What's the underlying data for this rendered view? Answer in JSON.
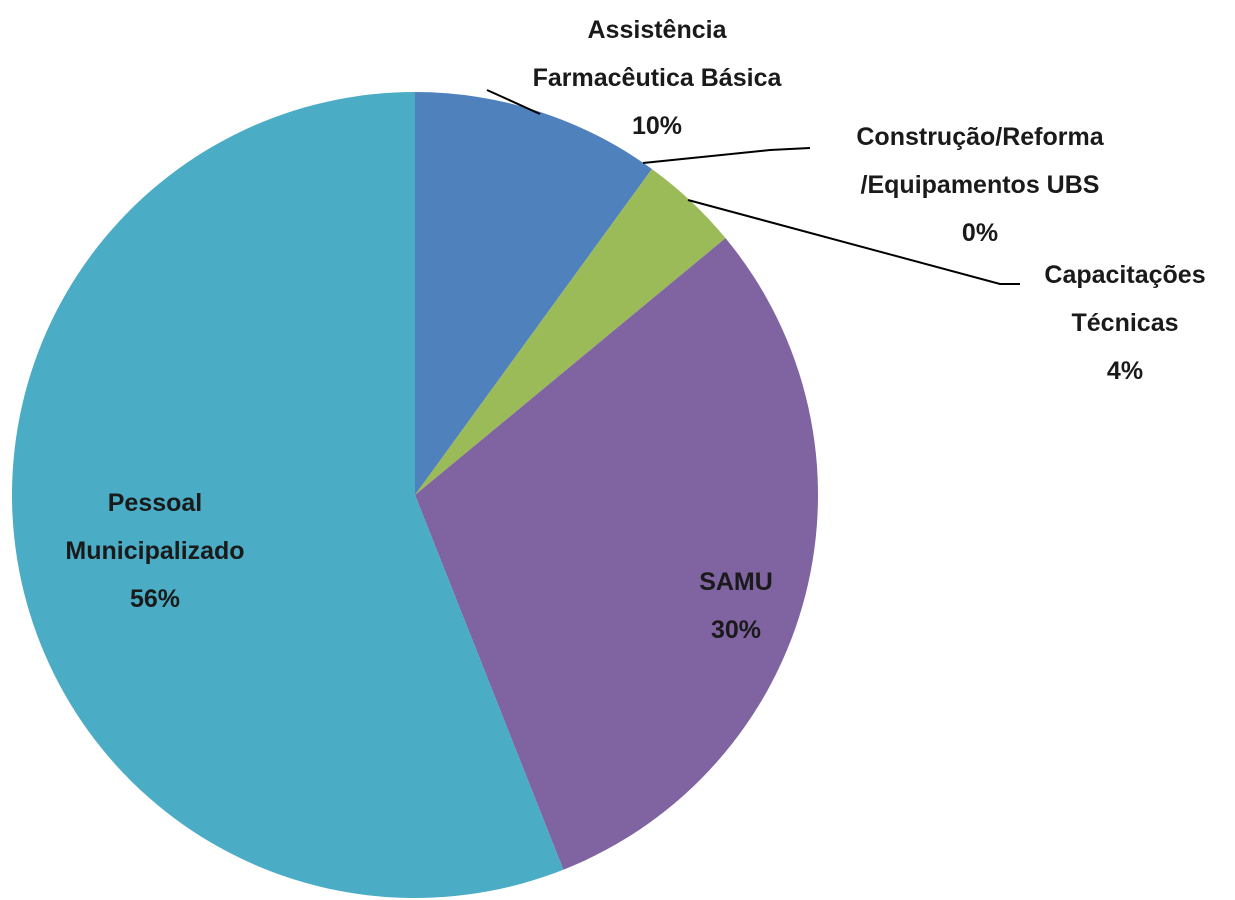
{
  "chart_data": {
    "type": "pie",
    "categories": [
      "Assistência\nFarmacêutica Básica",
      "Construção/Reforma\n/Equipamentos UBS",
      "Capacitações\nTécnicas",
      "SAMU",
      "Pessoal\nMunicipalizado"
    ],
    "values": [
      10,
      0,
      4,
      30,
      56
    ],
    "value_labels": [
      "10%",
      "0%",
      "4%",
      "30%",
      "56%"
    ],
    "colors": [
      "#4f81bd",
      "#c0504d",
      "#9bbb59",
      "#8064a2",
      "#4bacc6"
    ]
  }
}
